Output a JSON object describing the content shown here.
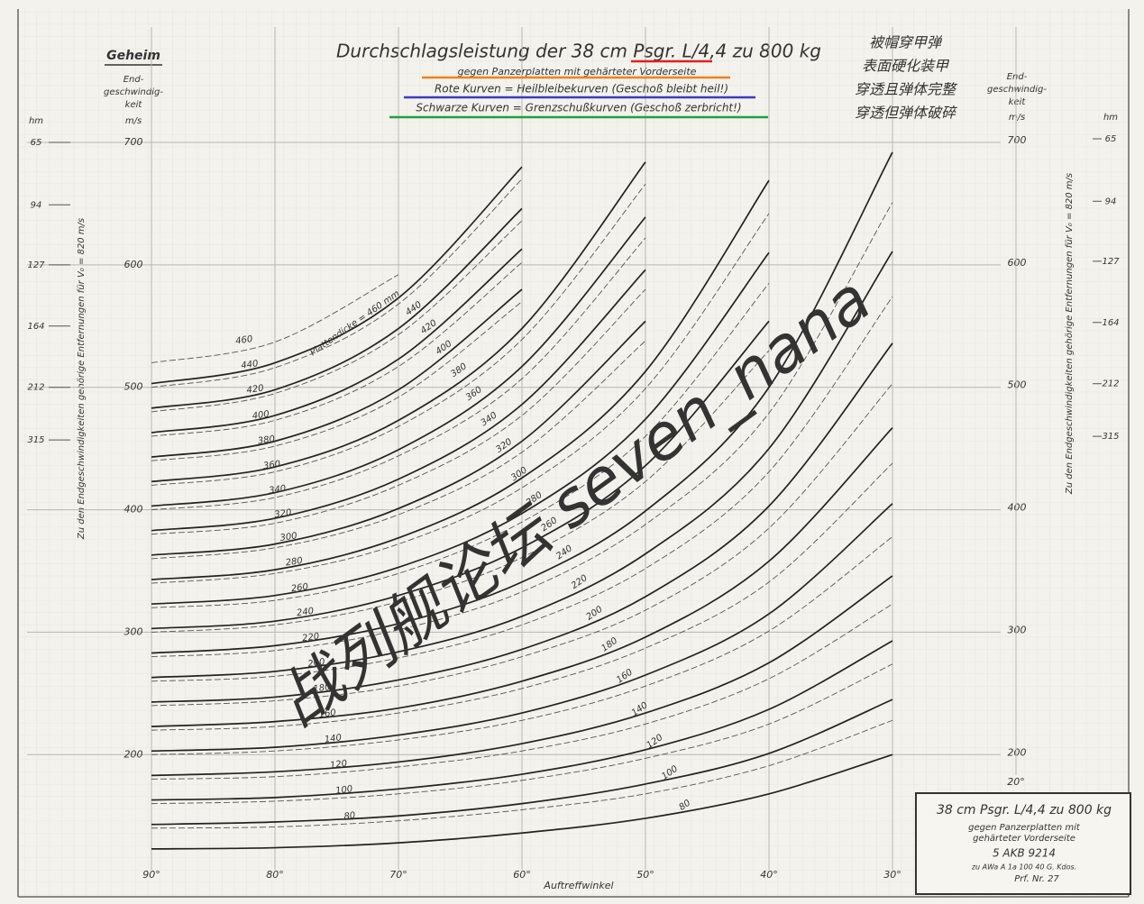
{
  "chart_data": {
    "type": "line",
    "title": "Durchschlagsleistung der 38 cm Psgr. L/4,4 zu 800 kg",
    "subtitle": "gegen Panzerplatten mit gehärteter Vorderseite",
    "notes": [
      "Rote Kurven = Heilbleibekurven (Geschoß bleibt heil!)",
      "Schwarze Kurven = Grenzschußkurven (Geschoß zerbricht!)"
    ],
    "annotations": [
      {
        "text": "被帽穿甲弹",
        "color": "#e02020"
      },
      {
        "text": "表面硬化装甲",
        "color": "#f08020"
      },
      {
        "text": "穿透且弹体完整",
        "color": "#3a3ac0"
      },
      {
        "text": "穿透但弹体破碎",
        "color": "#20a040"
      }
    ],
    "secret_label": "Geheim",
    "y_axis_header": [
      "End-",
      "geschwindig-",
      "keit"
    ],
    "y_unit": "m/s",
    "hm_unit": "hm",
    "hm_ticks": [
      {
        "value": 700,
        "label": "65"
      },
      {
        "value": 649,
        "label": "94"
      },
      {
        "value": 600,
        "label": "127"
      },
      {
        "value": 550,
        "label": "164"
      },
      {
        "value": 500,
        "label": "212"
      },
      {
        "value": 457,
        "label": "315"
      }
    ],
    "side_label": "Zu den Endgeschwindigkeiten gehörige Entfernungen für V₀ = 820 m/s",
    "x_label": "Auftreffwinkel",
    "x": [
      90,
      80,
      70,
      60,
      50,
      40,
      30
    ],
    "xlim": [
      90,
      30
    ],
    "xticks": [
      {
        "value": 90,
        "label": "90°"
      },
      {
        "value": 80,
        "label": "80°"
      },
      {
        "value": 70,
        "label": "70°"
      },
      {
        "value": 60,
        "label": "60°"
      },
      {
        "value": 50,
        "label": "50°"
      },
      {
        "value": 40,
        "label": "40°"
      },
      {
        "value": 30,
        "label": "30°"
      }
    ],
    "x_extra_tick": {
      "value": 20,
      "label": "20°"
    },
    "ylim": [
      106,
      700
    ],
    "yticks": [
      200,
      300,
      400,
      500,
      600,
      700
    ],
    "grid": true,
    "info_box": [
      "38 cm Psgr. L/4,4 zu 800 kg",
      "gegen Panzerplatten mit",
      "gehärteter Vorderseite",
      "5 AKB 9214",
      "zu AWa A 1a 100 40 G. Kdos.",
      "Prf. Nr. 27"
    ],
    "watermark": "战列舰论坛 seven_nana",
    "series": [
      {
        "name": "Plattendicke = 460 mm",
        "color": "#222222",
        "style": "solid",
        "values": [
          503,
          520,
          573,
          680,
          null,
          null,
          null
        ]
      },
      {
        "name": "440",
        "color": "#222222",
        "style": "solid",
        "values": [
          483,
          498,
          548,
          646,
          null,
          null,
          null
        ]
      },
      {
        "name": "420",
        "color": "#222222",
        "style": "solid",
        "values": [
          463,
          477,
          523,
          613,
          null,
          null,
          null
        ]
      },
      {
        "name": "400",
        "color": "#222222",
        "style": "solid",
        "values": [
          443,
          456,
          498,
          580,
          null,
          null,
          null
        ]
      },
      {
        "name": "380",
        "color": "#222222",
        "style": "solid",
        "values": [
          423,
          435,
          473,
          548,
          684,
          null,
          null
        ]
      },
      {
        "name": "360",
        "color": "#222222",
        "style": "solid",
        "values": [
          403,
          414,
          449,
          517,
          639,
          null,
          null
        ]
      },
      {
        "name": "340",
        "color": "#222222",
        "style": "solid",
        "values": [
          383,
          393,
          425,
          486,
          596,
          null,
          null
        ]
      },
      {
        "name": "320",
        "color": "#222222",
        "style": "solid",
        "values": [
          363,
          372,
          401,
          456,
          554,
          null,
          null
        ]
      },
      {
        "name": "300",
        "color": "#222222",
        "style": "solid",
        "values": [
          343,
          351,
          377,
          426,
          513,
          669,
          null
        ]
      },
      {
        "name": "280",
        "color": "#222222",
        "style": "solid",
        "values": [
          323,
          330,
          353,
          397,
          474,
          610,
          null
        ]
      },
      {
        "name": "260",
        "color": "#222222",
        "style": "solid",
        "values": [
          303,
          309,
          330,
          369,
          436,
          554,
          null
        ]
      },
      {
        "name": "240",
        "color": "#222222",
        "style": "solid",
        "values": [
          283,
          289,
          307,
          341,
          399,
          500,
          692
        ]
      },
      {
        "name": "220",
        "color": "#222222",
        "style": "solid",
        "values": [
          263,
          268,
          284,
          313,
          364,
          450,
          611
        ]
      },
      {
        "name": "200",
        "color": "#222222",
        "style": "solid",
        "values": [
          243,
          247,
          261,
          286,
          329,
          403,
          536
        ]
      },
      {
        "name": "180",
        "color": "#222222",
        "style": "solid",
        "values": [
          223,
          227,
          238,
          260,
          296,
          358,
          467
        ]
      },
      {
        "name": "160",
        "color": "#222222",
        "style": "solid",
        "values": [
          203,
          206,
          216,
          234,
          265,
          315,
          405
        ]
      },
      {
        "name": "140",
        "color": "#222222",
        "style": "solid",
        "values": [
          183,
          186,
          194,
          209,
          234,
          275,
          346
        ]
      },
      {
        "name": "120",
        "color": "#222222",
        "style": "solid",
        "values": [
          163,
          165,
          172,
          184,
          204,
          237,
          293
        ]
      },
      {
        "name": "100",
        "color": "#222222",
        "style": "solid",
        "values": [
          143,
          145,
          150,
          160,
          176,
          201,
          245
        ]
      },
      {
        "name": "80",
        "color": "#222222",
        "style": "solid",
        "values": [
          123,
          124,
          128,
          136,
          148,
          168,
          200
        ]
      },
      {
        "name": "460",
        "color": "#555555",
        "style": "dashed",
        "values": [
          520,
          537,
          592,
          null,
          null,
          null,
          null
        ]
      },
      {
        "name": "440",
        "color": "#555555",
        "style": "dashed",
        "values": [
          500,
          516,
          568,
          670,
          null,
          null,
          null
        ]
      },
      {
        "name": "420",
        "color": "#555555",
        "style": "dashed",
        "values": [
          480,
          495,
          543,
          636,
          null,
          null,
          null
        ]
      },
      {
        "name": "400",
        "color": "#555555",
        "style": "dashed",
        "values": [
          460,
          473,
          517,
          602,
          null,
          null,
          null
        ]
      },
      {
        "name": "380",
        "color": "#555555",
        "style": "dashed",
        "values": [
          440,
          452,
          492,
          570,
          null,
          null,
          null
        ]
      },
      {
        "name": "360",
        "color": "#555555",
        "style": "dashed",
        "values": [
          420,
          431,
          468,
          539,
          666,
          null,
          null
        ]
      },
      {
        "name": "340",
        "color": "#555555",
        "style": "dashed",
        "values": [
          400,
          410,
          444,
          507,
          622,
          null,
          null
        ]
      },
      {
        "name": "320",
        "color": "#555555",
        "style": "dashed",
        "values": [
          380,
          389,
          420,
          477,
          580,
          null,
          null
        ]
      },
      {
        "name": "300",
        "color": "#555555",
        "style": "dashed",
        "values": [
          360,
          369,
          396,
          447,
          538,
          null,
          null
        ]
      },
      {
        "name": "280",
        "color": "#555555",
        "style": "dashed",
        "values": [
          340,
          348,
          372,
          418,
          499,
          642,
          null
        ]
      },
      {
        "name": "260",
        "color": "#555555",
        "style": "dashed",
        "values": [
          320,
          326,
          348,
          390,
          460,
          585,
          null
        ]
      },
      {
        "name": "240",
        "color": "#555555",
        "style": "dashed",
        "values": [
          300,
          306,
          325,
          361,
          423,
          530,
          null
        ]
      },
      {
        "name": "220",
        "color": "#555555",
        "style": "dashed",
        "values": [
          280,
          285,
          302,
          333,
          388,
          479,
          651
        ]
      },
      {
        "name": "200",
        "color": "#555555",
        "style": "dashed",
        "values": [
          260,
          264,
          279,
          306,
          352,
          431,
          574
        ]
      },
      {
        "name": "180",
        "color": "#555555",
        "style": "dashed",
        "values": [
          240,
          244,
          256,
          280,
          318,
          385,
          503
        ]
      },
      {
        "name": "160",
        "color": "#555555",
        "style": "dashed",
        "values": [
          220,
          223,
          234,
          254,
          287,
          341,
          438
        ]
      },
      {
        "name": "140",
        "color": "#555555",
        "style": "dashed",
        "values": [
          200,
          203,
          212,
          228,
          256,
          301,
          378
        ]
      },
      {
        "name": "120",
        "color": "#555555",
        "style": "dashed",
        "values": [
          180,
          182,
          190,
          203,
          225,
          262,
          323
        ]
      },
      {
        "name": "100",
        "color": "#555555",
        "style": "dashed",
        "values": [
          160,
          162,
          168,
          179,
          197,
          225,
          274
        ]
      },
      {
        "name": "80",
        "color": "#555555",
        "style": "dashed",
        "values": [
          140,
          141,
          146,
          155,
          168,
          191,
          228
        ]
      }
    ]
  }
}
